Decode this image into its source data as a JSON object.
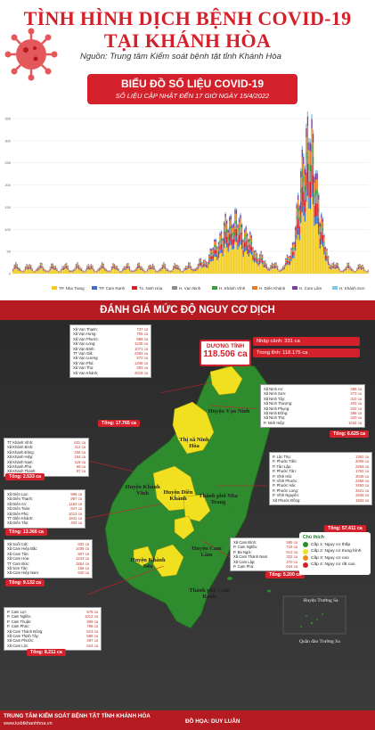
{
  "header": {
    "title_line1": "TÌNH HÌNH DỊCH BỆNH COVID-19",
    "title_line2": "TẠI KHÁNH HÒA",
    "source": "Nguồn: Trung tâm Kiểm soát bệnh tật tỉnh Khánh Hòa"
  },
  "chart_banner": {
    "title": "BIỂU ĐỒ SỐ LIỆU COVID-19",
    "subtitle": "SỐ LIỆU CẬP NHẬT ĐẾN 17 GIỜ NGÀY 15/4/2022"
  },
  "chart_data": {
    "type": "bar",
    "stacked": true,
    "title": "",
    "xlabel": "",
    "ylabel": "",
    "ylim": [
      0,
      3500
    ],
    "yticks": [
      0,
      50,
      100,
      150,
      200,
      250,
      300,
      350
    ],
    "ytick_labels": [
      "0",
      "50",
      "100",
      "150",
      "200",
      "250",
      "300",
      "350"
    ],
    "series": [
      {
        "name": "TP. Nha Trang",
        "color": "#f2cc1d"
      },
      {
        "name": "TP. Cam Ranh",
        "color": "#3f6fc4"
      },
      {
        "name": "Tx. Ninh Hòa",
        "color": "#d4202a"
      },
      {
        "name": "H. Vạn Ninh",
        "color": "#8c8c8c"
      },
      {
        "name": "H. Khánh Vĩnh",
        "color": "#3a9d3a"
      },
      {
        "name": "H. Diên Khánh",
        "color": "#e37f24"
      },
      {
        "name": "H. Cam Lâm",
        "color": "#7b3fa0"
      },
      {
        "name": "H. Khánh Sơn",
        "color": "#7fc7e8"
      }
    ],
    "legend_position": "bottom",
    "grid": true
  },
  "risk_banner": "ĐÁNH GIÁ MỨC ĐỘ NGUY CƠ DỊCH",
  "summary": {
    "label": "DƯƠNG TÍNH",
    "total": "118.506 ca",
    "imported": "Nhập cảnh: 331 ca",
    "domestic": "Trong tỉnh: 118.175 ca"
  },
  "vanninh": {
    "rows": [
      [
        "Xã Vạn Thạnh:",
        "737 ca"
      ],
      [
        "Xã Vạn Hưng:",
        "705 ca"
      ],
      [
        "Xã Vạn Phước:",
        "886 ca"
      ],
      [
        "Xã Vạn Long:",
        "1235 ca"
      ],
      [
        "Xã Vạn Bình:",
        "1071 ca"
      ],
      [
        "TT Vạn Giã:",
        "2384 ca"
      ],
      [
        "Xã Vạn Lương:",
        "972 ca"
      ],
      [
        "Xã Vạn Phú:",
        "1208 ca"
      ],
      [
        "Xã Vạn Thọ:",
        "383 ca"
      ],
      [
        "Xã Vạn Khánh:",
        "2018 ca"
      ]
    ],
    "total": "Tổng: 17.765 ca"
  },
  "ninhhoa_n": {
    "rows": [
      [
        "Xã Ninh An:",
        "285 ca"
      ],
      [
        "Xã Ninh Sơn:",
        "373 ca"
      ],
      [
        "Xã Ninh Tây:",
        "310 ca"
      ],
      [
        "Xã Ninh Thượng:",
        "402 ca"
      ],
      [
        "Xã Ninh Phụng:",
        "342 ca"
      ],
      [
        "Xã Ninh Đông:",
        "388 ca"
      ],
      [
        "Xã Ninh Thọ:",
        "420 ca"
      ],
      [
        "P. Ninh Hiệp:",
        "1034 ca"
      ]
    ],
    "total": "Tổng: 6.625 ca"
  },
  "khanhvinh": {
    "rows": [
      [
        "TT Khánh Vĩnh:",
        "631 ca"
      ],
      [
        "Xã Khánh Bình:",
        "112 ca"
      ],
      [
        "Xã Khánh Đông:",
        "208 ca"
      ],
      [
        "Xã Khánh Hiệp:",
        "194 ca"
      ],
      [
        "Xã Khánh Nam:",
        "118 ca"
      ],
      [
        "Xã Khánh Phú:",
        "69 ca"
      ],
      [
        "Xã Khánh Thành:",
        "87 ca"
      ]
    ],
    "total": "Tổng: 2.533 ca"
  },
  "nhatrang": {
    "rows": [
      [
        "P. Lộc Thọ:",
        "1392 ca"
      ],
      [
        "P. Phước Tiến:",
        "2008 ca"
      ],
      [
        "P. Tân Lập:",
        "2264 ca"
      ],
      [
        "P. Phước Tân:",
        "1762 ca"
      ],
      [
        "P. Vĩnh Hải:",
        "3046 ca"
      ],
      [
        "P. Vĩnh Phước:",
        "2456 ca"
      ],
      [
        "P. Phước Hải:",
        "3493 ca"
      ],
      [
        "P. Phước Long:",
        "3421 ca"
      ],
      [
        "P. Vĩnh Nguyên:",
        "2405 ca"
      ],
      [
        "Xã Phước Đồng:",
        "1933 ca"
      ]
    ],
    "total": "Tổng: 57.411 ca"
  },
  "dienkhanh": {
    "rows": [
      [
        "Xã Diên Lạc:",
        "996 ca"
      ],
      [
        "Xã Diên Thạnh:",
        "887 ca"
      ],
      [
        "Xã Diên An:",
        "1183 ca"
      ],
      [
        "Xã Diên Toàn:",
        "847 ca"
      ],
      [
        "Xã Diên Phú:",
        "1013 ca"
      ],
      [
        "TT Diên Khánh:",
        "1841 ca"
      ],
      [
        "Xã Diên Tân:",
        "404 ca"
      ]
    ],
    "total": "Tổng: 13.366 ca"
  },
  "camranh": {
    "rows": [
      [
        "Xã Cam Bình:",
        "585 ca"
      ],
      [
        "P. Cam Nghĩa:",
        "716 ca"
      ],
      [
        "P. Ba Ngòi:",
        "612 ca"
      ],
      [
        "Xã Cam Thành Nam:",
        "322 ca"
      ],
      [
        "Xã Cam Lập:",
        "270 ca"
      ],
      [
        "P. Cam Phú:",
        "644 ca"
      ]
    ],
    "total": "Tổng: 5.200 ca"
  },
  "camlam": {
    "rows": [
      [
        "Xã Suối Cát:",
        "832 ca"
      ],
      [
        "Xã Cam Hiệp Bắc:",
        "1008 ca"
      ],
      [
        "Xã Cam Tân:",
        "907 ca"
      ],
      [
        "Xã Cam Hòa:",
        "1233 ca"
      ],
      [
        "TT Cam Đức:",
        "1854 ca"
      ],
      [
        "Xã Sơn Tân:",
        "166 ca"
      ],
      [
        "Xã Cam Hiệp Nam:",
        "530 ca"
      ]
    ],
    "total": "Tổng: 9.132 ca"
  },
  "khanhson": {
    "rows": [
      [
        "P. Cam Lợi:",
        "675 ca"
      ],
      [
        "P. Cam Nghĩa:",
        "1012 ca"
      ],
      [
        "P. Cam Thuận:",
        "906 ca"
      ],
      [
        "P. Cam Phúc:",
        "798 ca"
      ],
      [
        "Xã Cam Thành Đông:",
        "523 ca"
      ],
      [
        "Xã Cam Thịnh Tây:",
        "586 ca"
      ],
      [
        "Xã Cam Phước:",
        "497 ca"
      ],
      [
        "Xã Cam Lộc:",
        "624 ca"
      ]
    ],
    "total": "Tổng: 8.211 ca"
  },
  "map_labels": {
    "vanninh": "Huyện Vạn Ninh",
    "ninhhoa": "Thị xã Ninh Hòa",
    "khanhvinh": "Huyện Khánh Vĩnh",
    "dienkhanh": "Huyện Diên Khánh",
    "nhatrang": "Thành phố Nha Trang",
    "camlam": "Huyện Cam Lâm",
    "khanhson": "Huyện Khánh Sơn",
    "camranh": "Thành phố Cam Ranh",
    "truongsa": "Huyện Trường Sa",
    "quandao": "Quần đảo Trường Sa"
  },
  "legend": {
    "title": "Chú thích",
    "items": [
      {
        "label": "Cấp 1: Nguy cơ thấp",
        "color": "#2e8b2e"
      },
      {
        "label": "Cấp 2: Nguy cơ trung bình",
        "color": "#f0e020"
      },
      {
        "label": "Cấp 3: Nguy cơ cao",
        "color": "#f08a1c"
      },
      {
        "label": "Cấp 4: Nguy cơ rất cao",
        "color": "#d4202a"
      }
    ]
  },
  "footer": {
    "org": "TRUNG TÂM KIỂM SOÁT BỆNH TẬT TỈNH KHÁNH HÒA",
    "site": "www.ksbtkhanhhoa.vn",
    "design": "ĐỒ HỌA: DUY LUÂN"
  },
  "colors": {
    "brand_red": "#d4202a",
    "dark_red": "#b51b21",
    "map_green": "#2e8b2e",
    "map_yellow": "#f0e020"
  }
}
